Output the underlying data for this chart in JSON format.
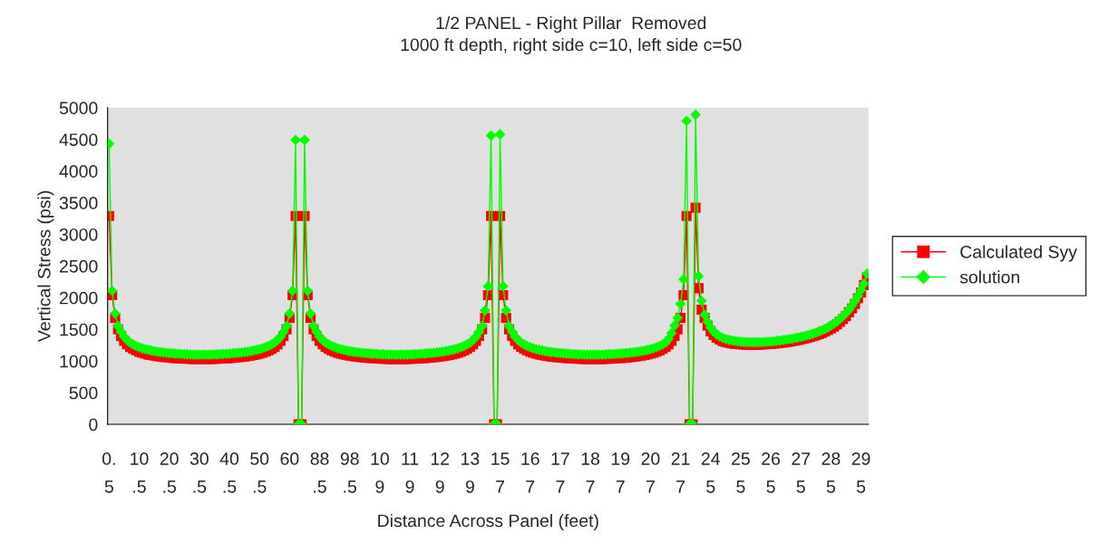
{
  "chart_data": {
    "type": "line",
    "title": "1/2 PANEL - Right Pillar  Removed",
    "subtitle": "1000 ft depth, right side c=10, left side c=50",
    "xlabel": "Distance Across Panel (feet)",
    "ylabel": "Vertical Stress (psi)",
    "categories": [
      "0.5",
      null,
      null,
      null,
      null,
      null,
      null,
      null,
      null,
      null,
      "10.5",
      null,
      null,
      null,
      null,
      null,
      null,
      null,
      null,
      null,
      "20.5",
      null,
      null,
      null,
      null,
      null,
      null,
      null,
      null,
      null,
      "30.5",
      null,
      null,
      null,
      null,
      null,
      null,
      null,
      null,
      null,
      "40.5",
      null,
      null,
      null,
      null,
      null,
      null,
      null,
      null,
      null,
      "50.5",
      null,
      null,
      null,
      null,
      null,
      null,
      null,
      null,
      null,
      "60",
      null,
      null,
      null,
      null,
      null,
      null,
      null,
      null,
      null,
      "88.5",
      null,
      null,
      null,
      null,
      null,
      null,
      null,
      null,
      null,
      "98.5",
      null,
      null,
      null,
      null,
      null,
      null,
      null,
      null,
      null,
      "109",
      null,
      null,
      null,
      null,
      null,
      null,
      null,
      null,
      null,
      "119",
      null,
      null,
      null,
      null,
      null,
      null,
      null,
      null,
      null,
      "129",
      null,
      null,
      null,
      null,
      null,
      null,
      null,
      null,
      null,
      "139",
      null,
      null,
      null,
      null,
      null,
      null,
      null,
      null,
      null,
      "157",
      null,
      null,
      null,
      null,
      null,
      null,
      null,
      null,
      null,
      "167",
      null,
      null,
      null,
      null,
      null,
      null,
      null,
      null,
      null,
      "177",
      null,
      null,
      null,
      null,
      null,
      null,
      null,
      null,
      null,
      "187",
      null,
      null,
      null,
      null,
      null,
      null,
      null,
      null,
      null,
      "197",
      null,
      null,
      null,
      null,
      null,
      null,
      null,
      null,
      null,
      "207",
      null,
      null,
      null,
      null,
      null,
      null,
      null,
      null,
      null,
      "217",
      null,
      null,
      null,
      null,
      null,
      null,
      null,
      null,
      null,
      "245",
      null,
      null,
      null,
      null,
      null,
      null,
      null,
      null,
      null,
      "255",
      null,
      null,
      null,
      null,
      null,
      null,
      null,
      null,
      null,
      "265",
      null,
      null,
      null,
      null,
      null,
      null,
      null,
      null,
      null,
      "275",
      null,
      null,
      null,
      null,
      null,
      null,
      null,
      null,
      null,
      "285",
      null,
      null,
      null,
      null,
      null,
      null,
      null,
      null,
      null,
      "295",
      null,
      null
    ],
    "series": [
      {
        "name": "Calculated Syy",
        "color": "#ff0000",
        "marker": "square",
        "values": [
          3290,
          2040,
          1680,
          1500,
          1395,
          1318,
          1263,
          1223,
          1193,
          1168,
          1148,
          1131,
          1117,
          1105,
          1095,
          1086,
          1078,
          1071,
          1065,
          1060,
          1055,
          1051,
          1047,
          1044,
          1041,
          1038,
          1036,
          1034,
          1032,
          1031,
          1030,
          1030,
          1030,
          1031,
          1032,
          1034,
          1036,
          1038,
          1041,
          1044,
          1047,
          1051,
          1055,
          1060,
          1065,
          1071,
          1078,
          1086,
          1095,
          1105,
          1117,
          1131,
          1148,
          1168,
          1193,
          1223,
          1263,
          1318,
          1395,
          1500,
          1680,
          2040,
          3290,
          0,
          0,
          3290,
          2040,
          1680,
          1500,
          1395,
          1318,
          1263,
          1223,
          1193,
          1168,
          1148,
          1131,
          1117,
          1105,
          1095,
          1086,
          1078,
          1071,
          1065,
          1060,
          1055,
          1051,
          1047,
          1044,
          1041,
          1038,
          1036,
          1034,
          1032,
          1031,
          1030,
          1030,
          1030,
          1031,
          1032,
          1034,
          1036,
          1038,
          1041,
          1044,
          1047,
          1051,
          1055,
          1060,
          1065,
          1071,
          1078,
          1086,
          1095,
          1105,
          1117,
          1131,
          1148,
          1168,
          1193,
          1223,
          1263,
          1318,
          1395,
          1500,
          1680,
          2040,
          3290,
          0,
          0,
          3290,
          2040,
          1680,
          1500,
          1395,
          1318,
          1263,
          1223,
          1193,
          1168,
          1148,
          1131,
          1117,
          1105,
          1095,
          1086,
          1078,
          1071,
          1065,
          1060,
          1055,
          1051,
          1047,
          1044,
          1041,
          1038,
          1036,
          1034,
          1032,
          1031,
          1030,
          1030,
          1030,
          1031,
          1032,
          1034,
          1036,
          1038,
          1041,
          1044,
          1047,
          1051,
          1055,
          1060,
          1065,
          1071,
          1078,
          1086,
          1095,
          1105,
          1117,
          1131,
          1148,
          1168,
          1193,
          1223,
          1263,
          1318,
          1395,
          1500,
          1680,
          2040,
          3290,
          0,
          0,
          3420,
          2150,
          1810,
          1680,
          1560,
          1470,
          1410,
          1368,
          1338,
          1316,
          1300,
          1288,
          1279,
          1272,
          1267,
          1263,
          1260,
          1258,
          1257,
          1257,
          1258,
          1259,
          1261,
          1264,
          1267,
          1271,
          1275,
          1280,
          1285,
          1291,
          1298,
          1305,
          1313,
          1322,
          1332,
          1342,
          1353,
          1365,
          1378,
          1392,
          1408,
          1425,
          1445,
          1465,
          1490,
          1515,
          1545,
          1580,
          1620,
          1660,
          1710,
          1770,
          1830,
          1900,
          1990,
          2080,
          2200,
          2320
        ]
      },
      {
        "name": "solution",
        "color": "#00ff00",
        "marker": "diamond",
        "values": [
          4430,
          2110,
          1750,
          1550,
          1460,
          1385,
          1330,
          1290,
          1262,
          1238,
          1218,
          1201,
          1187,
          1175,
          1165,
          1156,
          1148,
          1141,
          1135,
          1130,
          1125,
          1121,
          1117,
          1114,
          1111,
          1108,
          1106,
          1104,
          1102,
          1101,
          1100,
          1100,
          1100,
          1101,
          1102,
          1104,
          1106,
          1108,
          1111,
          1114,
          1117,
          1121,
          1125,
          1130,
          1135,
          1141,
          1148,
          1156,
          1165,
          1175,
          1187,
          1201,
          1218,
          1238,
          1262,
          1290,
          1330,
          1385,
          1460,
          1550,
          1750,
          2110,
          4490,
          0,
          0,
          4490,
          2110,
          1750,
          1550,
          1460,
          1385,
          1330,
          1290,
          1262,
          1238,
          1218,
          1201,
          1187,
          1175,
          1165,
          1156,
          1148,
          1141,
          1135,
          1130,
          1125,
          1121,
          1117,
          1114,
          1111,
          1108,
          1106,
          1104,
          1102,
          1101,
          1100,
          1100,
          1100,
          1101,
          1102,
          1104,
          1106,
          1108,
          1111,
          1114,
          1117,
          1121,
          1125,
          1130,
          1135,
          1141,
          1148,
          1156,
          1165,
          1175,
          1187,
          1201,
          1218,
          1238,
          1262,
          1290,
          1330,
          1385,
          1460,
          1550,
          1800,
          2180,
          4560,
          0,
          0,
          4580,
          2180,
          1800,
          1550,
          1460,
          1385,
          1330,
          1290,
          1262,
          1238,
          1218,
          1201,
          1187,
          1175,
          1165,
          1156,
          1148,
          1141,
          1135,
          1130,
          1125,
          1121,
          1117,
          1114,
          1111,
          1108,
          1106,
          1104,
          1102,
          1101,
          1100,
          1100,
          1100,
          1101,
          1102,
          1104,
          1106,
          1108,
          1111,
          1114,
          1117,
          1121,
          1125,
          1130,
          1135,
          1141,
          1148,
          1156,
          1165,
          1175,
          1187,
          1201,
          1218,
          1238,
          1262,
          1290,
          1350,
          1440,
          1560,
          1680,
          1900,
          2290,
          4790,
          0,
          0,
          4890,
          2340,
          1950,
          1730,
          1620,
          1530,
          1465,
          1420,
          1388,
          1365,
          1348,
          1335,
          1325,
          1317,
          1311,
          1306,
          1302,
          1299,
          1297,
          1296,
          1296,
          1297,
          1299,
          1302,
          1305,
          1309,
          1313,
          1318,
          1324,
          1330,
          1337,
          1344,
          1352,
          1361,
          1371,
          1381,
          1392,
          1404,
          1417,
          1431,
          1447,
          1465,
          1485,
          1505,
          1530,
          1560,
          1590,
          1625,
          1665,
          1710,
          1760,
          1810,
          1880,
          1950,
          2030,
          2120,
          2220,
          2380
        ]
      }
    ],
    "ylim": [
      0,
      5000
    ],
    "yticks": [
      0,
      500,
      1000,
      1500,
      2000,
      2500,
      3000,
      3500,
      4000,
      4500,
      5000
    ],
    "legend": "right"
  }
}
